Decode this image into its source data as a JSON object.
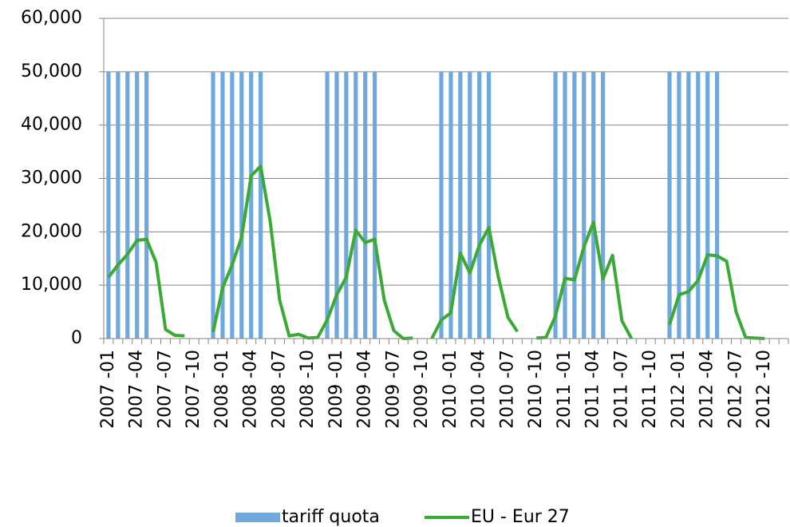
{
  "chart_data": {
    "type": "bar-line",
    "categories": [
      "2007 -01",
      null,
      null,
      "2007 -04",
      null,
      null,
      "2007 -07",
      null,
      null,
      "2007 -10",
      null,
      null,
      "2008 -01",
      null,
      null,
      "2008 -04",
      null,
      null,
      "2008 -07",
      null,
      null,
      "2008 -10",
      null,
      null,
      "2009 -01",
      null,
      null,
      "2009 -04",
      null,
      null,
      "2009 -07",
      null,
      null,
      "2009 -10",
      null,
      null,
      "2010 -01",
      null,
      null,
      "2010 -04",
      null,
      null,
      "2010 -07",
      null,
      null,
      "2010 -10",
      null,
      null,
      "2011 -01",
      null,
      null,
      "2011 -04",
      null,
      null,
      "2011 -07",
      null,
      null,
      "2011 -10",
      null,
      null,
      "2012 -01",
      null,
      null,
      "2012 -04",
      null,
      null,
      "2012 -07",
      null,
      null,
      "2012 -10",
      null,
      null
    ],
    "series": [
      {
        "name": "tariff quota",
        "type": "bar",
        "color": "#6fa8dc",
        "values": [
          50000,
          50000,
          50000,
          50000,
          50000,
          null,
          null,
          null,
          null,
          null,
          null,
          50000,
          50000,
          50000,
          50000,
          50000,
          50000,
          null,
          null,
          null,
          null,
          null,
          null,
          50000,
          50000,
          50000,
          50000,
          50000,
          50000,
          null,
          null,
          null,
          null,
          null,
          null,
          50000,
          50000,
          50000,
          50000,
          50000,
          50000,
          null,
          null,
          null,
          null,
          null,
          null,
          50000,
          50000,
          50000,
          50000,
          50000,
          50000,
          null,
          null,
          null,
          null,
          null,
          null,
          50000,
          50000,
          50000,
          50000,
          50000,
          50000,
          null,
          null,
          null,
          null,
          null,
          null,
          null
        ]
      },
      {
        "name": "EU - Eur 27",
        "type": "line",
        "color": "#3aaa35",
        "values": [
          11500,
          13800,
          15800,
          18400,
          18600,
          14300,
          1700,
          600,
          500,
          null,
          null,
          1200,
          9500,
          13800,
          19000,
          30500,
          32300,
          22000,
          7200,
          500,
          800,
          100,
          200,
          3500,
          8200,
          11500,
          20300,
          18000,
          18600,
          7200,
          1500,
          0,
          100,
          null,
          0,
          3500,
          4800,
          16000,
          12300,
          17500,
          20800,
          11500,
          4000,
          1300,
          null,
          100,
          200,
          4200,
          11300,
          11000,
          17200,
          21800,
          11200,
          15600,
          3300,
          0,
          null,
          null,
          null,
          2600,
          8200,
          8800,
          10900,
          15700,
          15500,
          14500,
          5000,
          200,
          100,
          0,
          null,
          null
        ]
      }
    ],
    "ylim": [
      0,
      60000
    ],
    "yticks": [
      0,
      {
        "value": 10000,
        "label": "10,000"
      },
      {
        "value": 20000,
        "label": "20,000"
      },
      {
        "value": 30000,
        "label": "30,000"
      },
      {
        "value": 40000,
        "label": "40,000"
      },
      {
        "value": 50000,
        "label": "50,000"
      },
      {
        "value": 60000,
        "label": "60,000"
      }
    ],
    "grid": true,
    "legend": "bottom"
  }
}
